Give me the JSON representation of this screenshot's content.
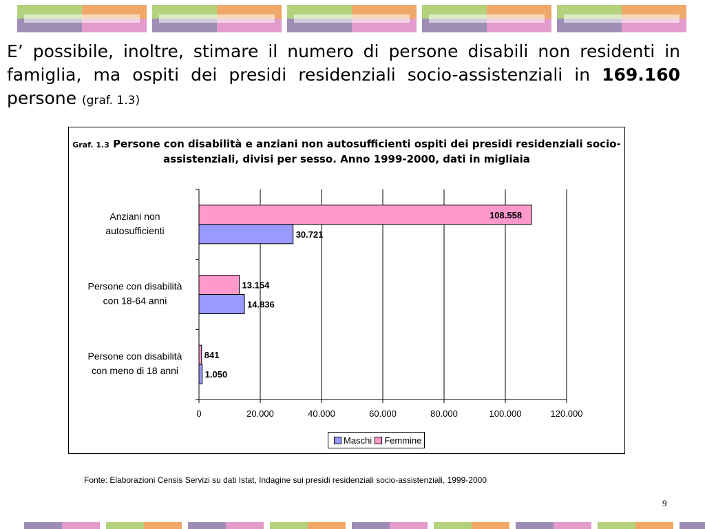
{
  "intro": {
    "text_before": "E’ possibile, inoltre, stimare il numero di persone disabili non residenti in famiglia, ma  ospiti dei presidi residenziali socio-assistenziali in ",
    "highlight": "169.160",
    "text_after": " persone ",
    "ref": "(graf. 1.3)"
  },
  "chart": {
    "title_prefix": "Graf. 1.3",
    "title_main": "Persone con disabilità e anziani non autosufficienti ospiti dei presidi residenziali socio-assistenziali, divisi per sesso. Anno 1999-2000, dati in migliaia"
  },
  "chart_data": {
    "type": "bar",
    "orientation": "horizontal",
    "categories": [
      "Anziani non autosufficienti",
      "Persone con disabilità con 18-64 anni",
      "Persone con disabilità con meno di 18 anni"
    ],
    "category_lines": [
      [
        "Anziani non",
        "autosufficienti"
      ],
      [
        "Persone con disabilità",
        "con 18-64 anni"
      ],
      [
        "Persone con disabilità",
        "con meno di 18 anni"
      ]
    ],
    "series": [
      {
        "name": "Femmine",
        "values": [
          108558,
          13154,
          841
        ],
        "labels": [
          "108.558",
          "13.154",
          "841"
        ],
        "color": "#ff99cc"
      },
      {
        "name": "Maschi",
        "values": [
          30721,
          14836,
          1050
        ],
        "labels": [
          "30.721",
          "14.836",
          "1.050"
        ],
        "color": "#9999ff"
      }
    ],
    "xlim": [
      0,
      120000
    ],
    "xticks": [
      0,
      20000,
      40000,
      60000,
      80000,
      100000,
      120000
    ],
    "xtick_labels": [
      "0",
      "20.000",
      "40.000",
      "60.000",
      "80.000",
      "100.000",
      "120.000"
    ],
    "grid": true,
    "legend": {
      "position": "bottom",
      "entries": [
        {
          "name": "Maschi",
          "color": "#9999ff"
        },
        {
          "name": "Femmine",
          "color": "#ff99cc"
        }
      ]
    }
  },
  "source": "Fonte: Elaborazioni Censis Servizi su dati Istat, Indagine sui presidi residenziali socio-assistenziali, 1999-2000",
  "page_number": "9",
  "decor_colors": [
    "#b4d27d",
    "#f0a868",
    "#9e8db5",
    "#e29bcb"
  ]
}
